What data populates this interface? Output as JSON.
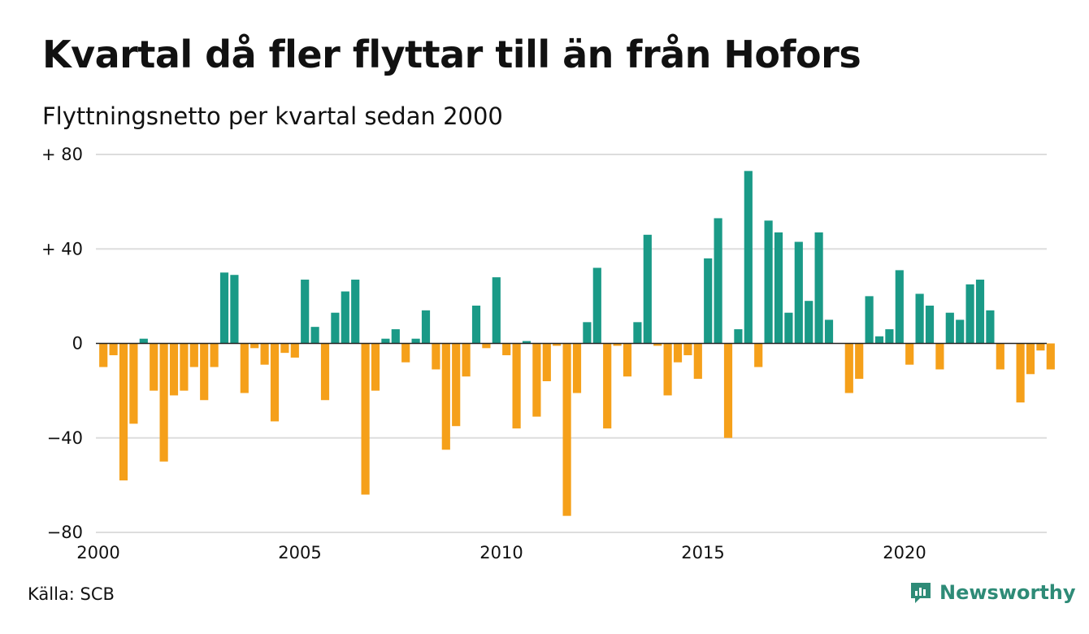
{
  "header": {
    "title": "Kvartal då fler flyttar till än från Hofors",
    "subtitle": "Flyttningsnetto per kvartal sedan 2000"
  },
  "footer": {
    "source": "Källa: SCB",
    "brand": "Newsworthy"
  },
  "colors": {
    "positive": "#1a9a87",
    "negative": "#f5a01a",
    "grid": "#dddddd",
    "baseline": "#222222",
    "brand": "#2e8b77"
  },
  "icons": {
    "brand_logo": "chart-bubble-icon"
  },
  "chart_data": {
    "type": "bar",
    "title": "Kvartal då fler flyttar till än från Hofors",
    "subtitle": "Flyttningsnetto per kvartal sedan 2000",
    "xlabel": "",
    "ylabel": "",
    "ylim": [
      -80,
      80
    ],
    "yticks": [
      {
        "value": 80,
        "label": "+ 80"
      },
      {
        "value": 40,
        "label": "+ 40"
      },
      {
        "value": 0,
        "label": "0"
      },
      {
        "value": -40,
        "label": "−40"
      },
      {
        "value": -80,
        "label": "−80"
      }
    ],
    "xticks": [
      "2000",
      "2005",
      "2010",
      "2015",
      "2020"
    ],
    "grid": true,
    "start_quarter": "2000 Q1",
    "quarters_per_year": 4,
    "values": [
      -10,
      -5,
      -58,
      -34,
      2,
      -20,
      -50,
      -22,
      -20,
      -10,
      -24,
      -10,
      30,
      29,
      -21,
      -2,
      -9,
      -33,
      -4,
      -6,
      27,
      7,
      -24,
      13,
      22,
      27,
      -64,
      -20,
      2,
      6,
      -8,
      2,
      14,
      -11,
      -45,
      -35,
      -14,
      16,
      -2,
      28,
      -5,
      -36,
      1,
      -31,
      -16,
      -1,
      -73,
      -21,
      9,
      32,
      -36,
      -1,
      -14,
      9,
      46,
      -1,
      -22,
      -8,
      -5,
      -15,
      36,
      53,
      -40,
      6,
      73,
      -10,
      52,
      47,
      13,
      43,
      18,
      47,
      10,
      0,
      -21,
      -15,
      20,
      3,
      6,
      31,
      -9,
      21,
      16,
      -11,
      13,
      10,
      25,
      27,
      14,
      -11,
      0,
      -25,
      -13,
      -3,
      -11
    ]
  }
}
